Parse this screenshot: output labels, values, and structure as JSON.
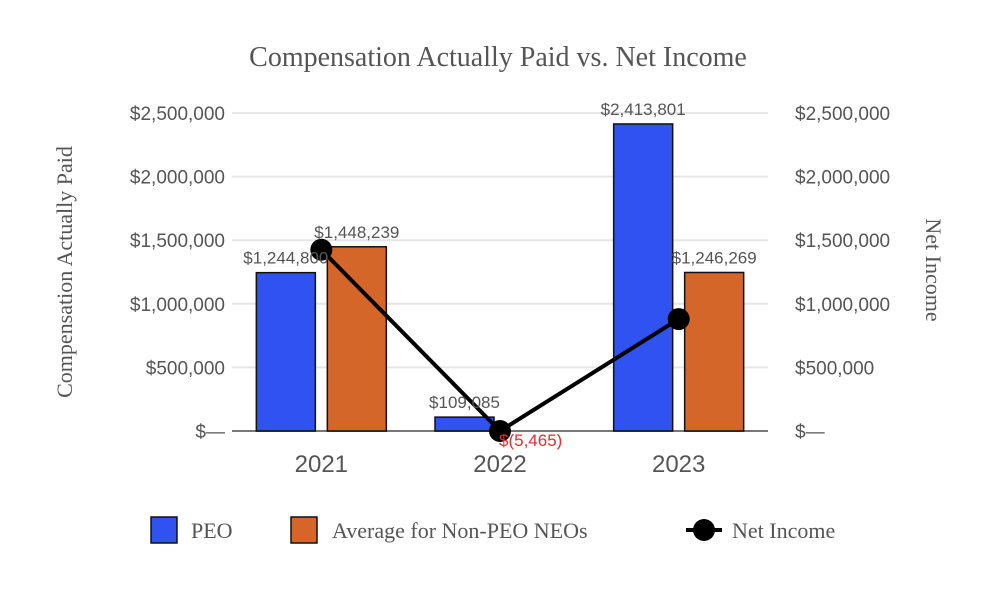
{
  "chart_data": {
    "type": "bar",
    "title": "Compensation Actually Paid vs. Net Income",
    "ylabel": "Compensation Actually Paid",
    "y2label": "Net Income",
    "categories": [
      "2021",
      "2022",
      "2023"
    ],
    "ylim": [
      0,
      2500000
    ],
    "y2lim": [
      0,
      2500000
    ],
    "yticks": [
      0,
      500000,
      1000000,
      1500000,
      2000000,
      2500000
    ],
    "ytick_labels": [
      "$—",
      "$500,000",
      "$1,000,000",
      "$1,500,000",
      "$2,000,000",
      "$2,500,000"
    ],
    "grid": true,
    "legend_position": "bottom",
    "series": [
      {
        "name": "PEO",
        "type": "bar",
        "color": "#2f52f0",
        "values": [
          1244800,
          109085,
          2413801
        ],
        "labels": [
          "$1,244,800",
          "$109,085",
          "$2,413,801"
        ]
      },
      {
        "name": "Average for Non-PEO NEOs",
        "type": "bar",
        "color": "#d4662a",
        "values": [
          1448239,
          null,
          1246269
        ],
        "labels": [
          "$1,448,239",
          "",
          "$1,246,269"
        ]
      },
      {
        "name": "Net Income",
        "type": "line",
        "axis": "right",
        "color": "#000000",
        "values": [
          1425000,
          -5465,
          880000
        ],
        "labels": [
          "",
          "$(5,465)",
          ""
        ],
        "negative_label_color": "#e03030"
      }
    ]
  }
}
